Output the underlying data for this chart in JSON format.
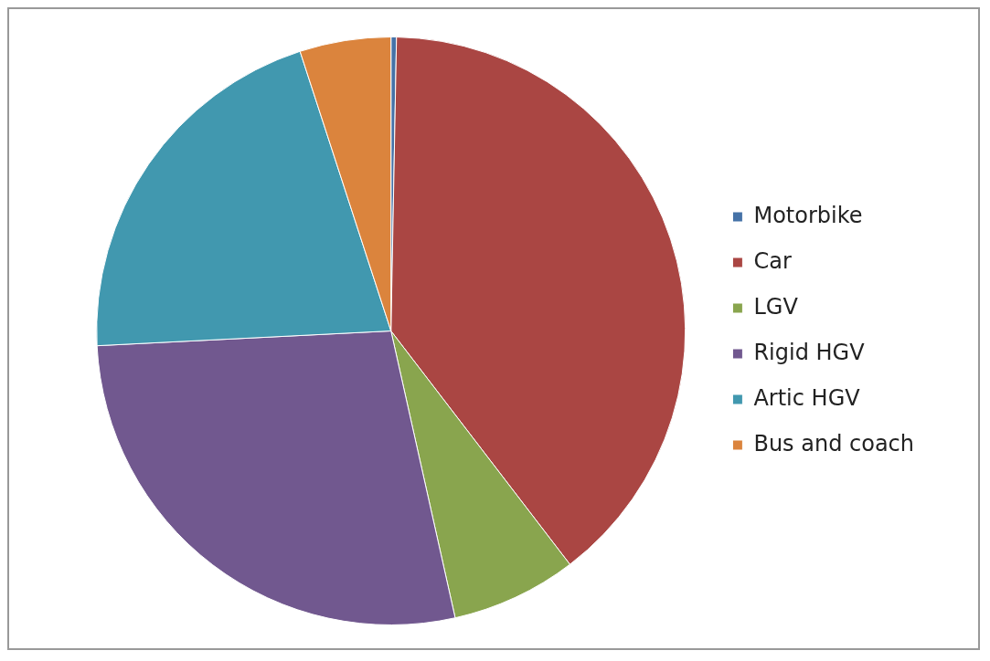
{
  "chart_data": {
    "type": "pie",
    "categories": [
      "Motorbike",
      "Car",
      "LGV",
      "Rigid HGV",
      "Artic HGV",
      "Bus and coach"
    ],
    "values": [
      0.3,
      39.3,
      6.9,
      27.7,
      20.8,
      5.0
    ],
    "colors": [
      "#4572a7",
      "#aa4643",
      "#89a54e",
      "#71588f",
      "#4198af",
      "#db843d"
    ],
    "legend": "right"
  }
}
